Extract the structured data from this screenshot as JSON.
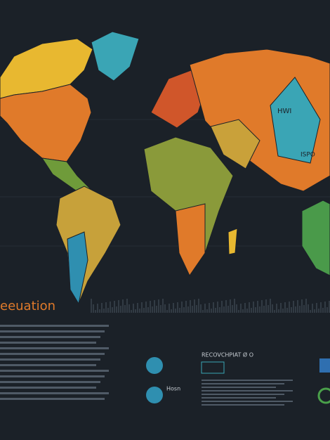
{
  "title": "eeuation",
  "map_labels": [
    "HWI",
    "ISPO"
  ],
  "panel": {
    "heading": "RECOVCHPIAT Ø O",
    "icon_caption": "Hosn"
  }
}
